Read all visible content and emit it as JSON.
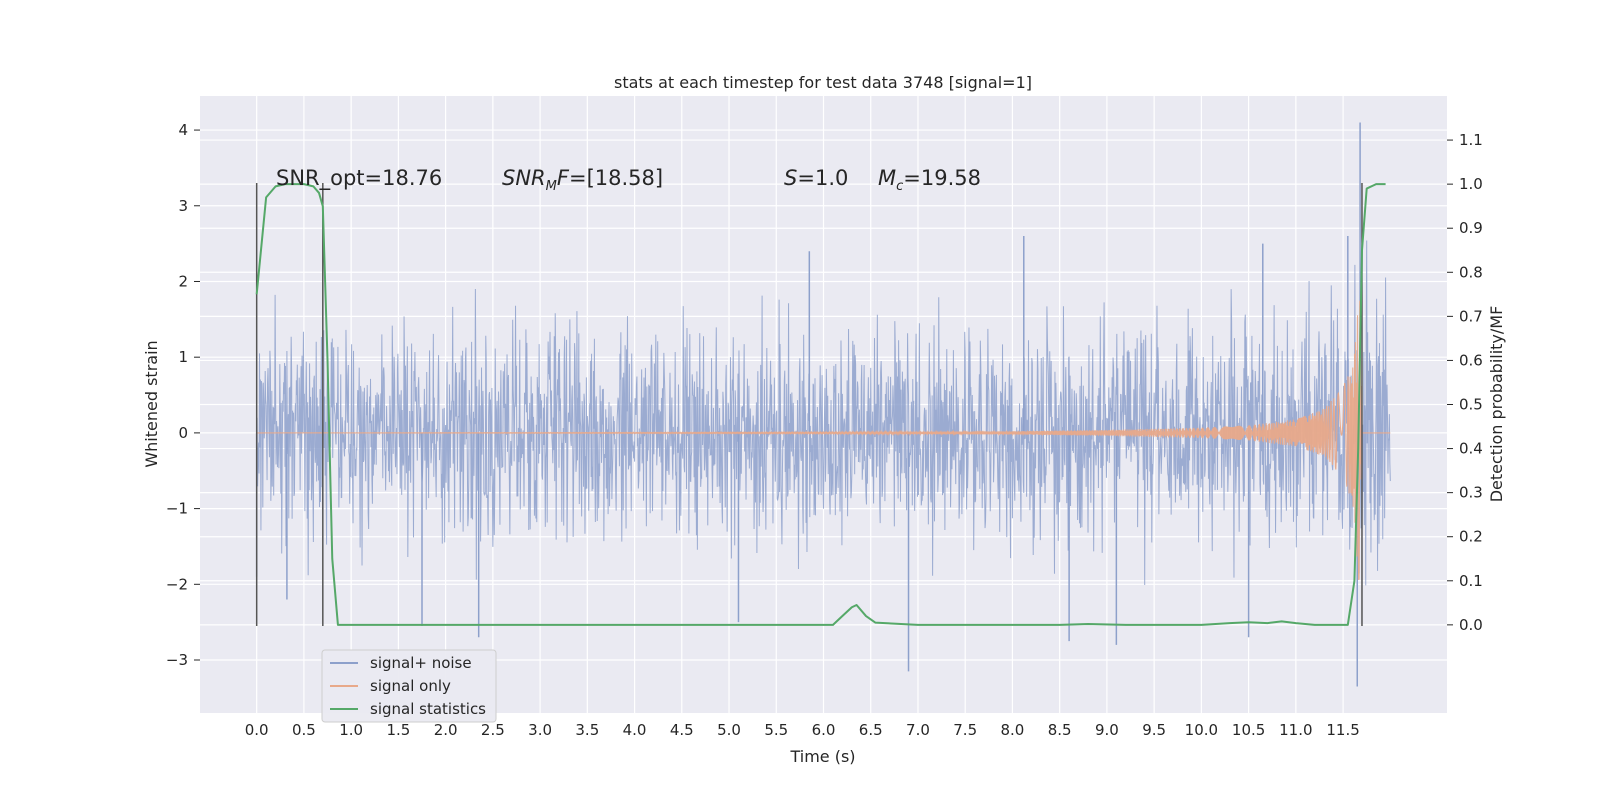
{
  "chart_data": {
    "type": "line",
    "title": "stats at each timestep for test data 3748 [signal=1]",
    "xlabel": "Time (s)",
    "ylabel_left": "Whitened strain",
    "ylabel_right": "Detection probability/MF",
    "xlim": [
      -0.6,
      12.6
    ],
    "ylim_left": [
      -3.7,
      4.45
    ],
    "ylim_right": [
      -0.2,
      1.2
    ],
    "x_ticks": [
      "0.0",
      "0.5",
      "1.0",
      "1.5",
      "2.0",
      "2.5",
      "3.0",
      "3.5",
      "4.0",
      "4.5",
      "5.0",
      "5.5",
      "6.0",
      "6.5",
      "7.0",
      "7.5",
      "8.0",
      "8.5",
      "9.0",
      "9.5",
      "10.0",
      "10.5",
      "11.0",
      "11.5"
    ],
    "y_ticks_left": [
      "−3",
      "−2",
      "−1",
      "0",
      "1",
      "2",
      "3",
      "4"
    ],
    "y_ticks_right": [
      "0.0",
      "0.1",
      "0.2",
      "0.3",
      "0.4",
      "0.5",
      "0.6",
      "0.7",
      "0.8",
      "0.9",
      "1.0",
      "1.1"
    ],
    "grid": true,
    "legend_position": "lower-left",
    "annotations": {
      "snr_opt": "SNR_opt=18.76",
      "snr_mf": "[18.58]",
      "s_value": "1.0",
      "mc_value": "19.58"
    },
    "vertical_markers_x": [
      0.0,
      0.7,
      11.7
    ],
    "noise_spikes": [
      {
        "x": 0.0,
        "y": -1.9
      },
      {
        "x": 0.32,
        "y": -2.2
      },
      {
        "x": 1.75,
        "y": -2.55
      },
      {
        "x": 2.35,
        "y": -2.7
      },
      {
        "x": 5.1,
        "y": -2.5
      },
      {
        "x": 6.9,
        "y": -3.15
      },
      {
        "x": 8.6,
        "y": -2.75
      },
      {
        "x": 9.1,
        "y": -2.8
      },
      {
        "x": 10.5,
        "y": -2.7
      },
      {
        "x": 11.65,
        "y": -3.35
      },
      {
        "x": 11.68,
        "y": 4.1
      },
      {
        "x": 8.12,
        "y": 2.6
      },
      {
        "x": 5.85,
        "y": 2.4
      },
      {
        "x": 10.65,
        "y": 2.5
      },
      {
        "x": 11.55,
        "y": 2.6
      }
    ],
    "series": [
      {
        "name": "signal+ noise",
        "color": "#8da0cb",
        "kind": "noise",
        "envelope_x": [
          0.0,
          2.0,
          4.0,
          6.0,
          8.0,
          10.0,
          11.0,
          11.5,
          11.72,
          12.0
        ],
        "envelope_y": [
          1.2,
          1.25,
          1.25,
          1.25,
          1.3,
          1.3,
          1.35,
          1.6,
          2.2,
          1.2
        ]
      },
      {
        "name": "signal only",
        "color": "#e8a98a",
        "kind": "chirp",
        "envelope_x": [
          0.0,
          6.0,
          8.0,
          9.0,
          10.0,
          10.5,
          11.0,
          11.3,
          11.5,
          11.6,
          11.68,
          11.7
        ],
        "envelope_y": [
          0.0,
          0.01,
          0.02,
          0.04,
          0.07,
          0.1,
          0.18,
          0.32,
          0.6,
          0.95,
          2.2,
          0.0
        ]
      },
      {
        "name": "signal statistics",
        "color": "#55a868",
        "kind": "line",
        "axis": "right",
        "x": [
          0.0,
          0.1,
          0.2,
          0.3,
          0.4,
          0.5,
          0.6,
          0.66,
          0.7,
          0.75,
          0.8,
          0.86,
          0.9,
          1.0,
          2.0,
          3.0,
          4.0,
          5.0,
          5.9,
          6.1,
          6.2,
          6.3,
          6.35,
          6.45,
          6.55,
          7.0,
          7.5,
          8.0,
          8.5,
          8.8,
          9.2,
          10.0,
          10.3,
          10.5,
          10.7,
          10.85,
          11.0,
          11.2,
          11.55,
          11.62,
          11.66,
          11.7,
          11.75,
          11.85,
          11.95
        ],
        "y": [
          0.75,
          0.97,
          0.995,
          1.0,
          1.0,
          1.0,
          0.995,
          0.98,
          0.95,
          0.6,
          0.15,
          0.0,
          0.0,
          0.0,
          0.0,
          0.0,
          0.0,
          0.0,
          0.0,
          0.0,
          0.02,
          0.04,
          0.045,
          0.02,
          0.005,
          0.0,
          0.0,
          0.0,
          0.0,
          0.002,
          0.0,
          0.0,
          0.004,
          0.006,
          0.004,
          0.008,
          0.004,
          0.0,
          0.0,
          0.1,
          0.4,
          0.85,
          0.99,
          1.0,
          1.0
        ]
      }
    ]
  }
}
